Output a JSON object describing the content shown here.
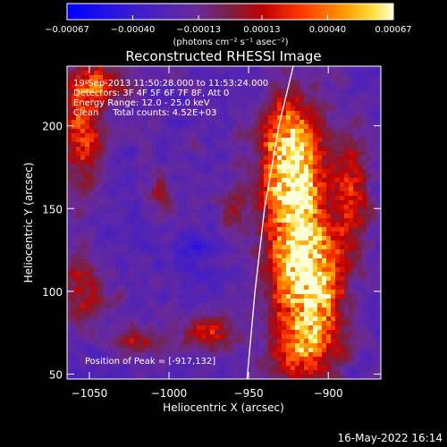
{
  "chart_data": {
    "type": "heatmap",
    "title": "Reconstructed RHESSI Image",
    "xlabel": "Heliocentric X (arcsec)",
    "ylabel": "Heliocentric Y (arcsec)",
    "xlim": [
      -1064,
      -867
    ],
    "ylim": [
      47,
      236
    ],
    "x_ticks": [
      -1050,
      -1000,
      -950,
      -900
    ],
    "y_ticks": [
      50,
      100,
      150,
      200
    ],
    "colorbar": {
      "ticks": [
        "-0.00067",
        "-0.00040",
        "-0.00013",
        "0.00013",
        "0.00040",
        "0.00067"
      ],
      "label": "(photons cm⁻² s⁻¹ asec⁻²)",
      "range": [
        -0.00067,
        0.00067
      ]
    },
    "annotations": [
      "19-Sep-2013 11:50:28.000 to 11:53:24.000",
      "Detectors: 3F 4F 5F 6F 7F 8F, Att 0",
      "Energy Range: 12.0 - 25.0 keV",
      "Clean     Total counts: 4.52E+03"
    ],
    "peak_label": "Position of Peak = [-917,132]",
    "peak": [
      -917,
      132
    ],
    "blobs": [
      {
        "x": -920,
        "y": 135,
        "sx": 14,
        "sy": 40,
        "a": 1.0
      },
      {
        "x": -925,
        "y": 185,
        "sx": 12,
        "sy": 22,
        "a": 0.75
      },
      {
        "x": -905,
        "y": 100,
        "sx": 12,
        "sy": 22,
        "a": 0.65
      },
      {
        "x": -915,
        "y": 65,
        "sx": 15,
        "sy": 14,
        "a": 0.55
      },
      {
        "x": -885,
        "y": 160,
        "sx": 8,
        "sy": 25,
        "a": 0.5
      },
      {
        "x": -1055,
        "y": 200,
        "sx": 9,
        "sy": 28,
        "a": 0.6
      },
      {
        "x": -1040,
        "y": 225,
        "sx": 12,
        "sy": 8,
        "a": 0.45
      },
      {
        "x": -1055,
        "y": 100,
        "sx": 10,
        "sy": 14,
        "a": 0.45
      },
      {
        "x": -1020,
        "y": 70,
        "sx": 10,
        "sy": 6,
        "a": 0.4
      },
      {
        "x": -975,
        "y": 75,
        "sx": 12,
        "sy": 8,
        "a": 0.45
      },
      {
        "x": -1005,
        "y": 160,
        "sx": 6,
        "sy": 10,
        "a": 0.3
      },
      {
        "x": -960,
        "y": 150,
        "sx": 6,
        "sy": 12,
        "a": 0.3
      },
      {
        "x": -985,
        "y": 120,
        "sx": 8,
        "sy": 8,
        "a": -0.2
      }
    ],
    "limb_points": [
      [
        -951,
        47
      ],
      [
        -946,
        100
      ],
      [
        -940,
        150
      ],
      [
        -931,
        200
      ],
      [
        -922,
        236
      ]
    ]
  },
  "footer_timestamp": "16-May-2022 16:14"
}
